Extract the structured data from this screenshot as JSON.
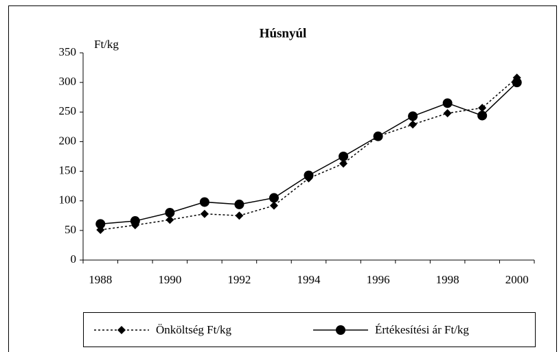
{
  "chart_data": {
    "type": "line",
    "title": "Húsnyúl",
    "y_label": "Ft/kg",
    "categories": [
      "1988",
      null,
      "1990",
      null,
      "1992",
      null,
      "1994",
      null,
      "1996",
      null,
      "1998",
      null,
      "2000"
    ],
    "series": [
      {
        "name": "Önköltség Ft/kg",
        "color": "#000000",
        "marker": "diamond",
        "dash": "dotted",
        "values": [
          51,
          59,
          68,
          78,
          75,
          92,
          138,
          163,
          209,
          229,
          248,
          257,
          308
        ]
      },
      {
        "name": "Értékesítési ár Ft/kg",
        "color": "#000000",
        "marker": "circle",
        "dash": "solid",
        "values": [
          61,
          66,
          80,
          98,
          94,
          105,
          143,
          175,
          209,
          243,
          265,
          244,
          300
        ]
      }
    ],
    "ylim": [
      0,
      350
    ],
    "yticks": [
      0,
      50,
      100,
      150,
      200,
      250,
      300,
      350
    ],
    "grid": false,
    "legend": "bottom"
  }
}
